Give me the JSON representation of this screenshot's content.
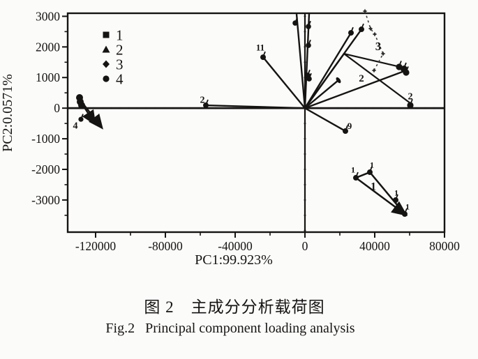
{
  "page": {
    "background": "#fbfbf9",
    "ink": "#161412",
    "dash_color": "#3e3e3e"
  },
  "caption": {
    "zh": "图 2　主成分分析载荷图",
    "en": "Fig.2   Principal component loading analysis"
  },
  "chart_data": {
    "type": "scatter",
    "title": "",
    "xlabel": "PC1:99.923%",
    "ylabel": "PC2:0.0571%",
    "xlim": [
      -136000,
      80000
    ],
    "ylim": [
      -4050,
      3100
    ],
    "x_ticks": [
      -120000,
      -80000,
      -40000,
      0,
      40000,
      80000
    ],
    "x_minor_ticks": [
      -100000,
      -60000,
      -20000,
      20000,
      60000
    ],
    "y_ticks": [
      3000,
      2000,
      1000,
      0,
      -1000,
      -2000,
      -3000
    ],
    "y_minor_step": 500,
    "axis_dot_step_x": 5000,
    "axis_dot_step_y": 500,
    "grid": false,
    "legend": {
      "position": "top-left-inside",
      "entries": [
        {
          "marker": "square",
          "label": "1"
        },
        {
          "marker": "triangle",
          "label": "2"
        },
        {
          "marker": "diamond",
          "label": "3"
        },
        {
          "marker": "circle",
          "label": "4"
        }
      ]
    },
    "origin": [
      0,
      0
    ],
    "origin_vectors": [
      {
        "x": -24000,
        "y": 1664,
        "tip_marker": "club"
      },
      {
        "x": -4800,
        "y": 3076,
        "tip_marker": "none",
        "points": [
          {
            "x": -5600,
            "y": 2780
          }
        ]
      },
      {
        "x": 2400,
        "y": 3089,
        "tip_marker": "none",
        "points": [
          {
            "x": 2000,
            "y": 2666
          },
          {
            "x": 2000,
            "y": 2051
          },
          {
            "x": 1600,
            "y": 1072
          },
          {
            "x": 2400,
            "y": 958
          }
        ]
      },
      {
        "x": 26400,
        "y": 2460,
        "tip_marker": "club"
      },
      {
        "x": 32400,
        "y": 2575,
        "tip_marker": "club"
      },
      {
        "x": 22400,
        "y": 1778,
        "tip_marker": "none"
      },
      {
        "x": 58000,
        "y": 1232,
        "tip_marker": "none"
      },
      {
        "x": 19200,
        "y": 913,
        "tip_marker": "comma"
      },
      {
        "x": 23200,
        "y": -749,
        "tip_marker": "club"
      },
      {
        "x": -56800,
        "y": 93,
        "tip_marker": "club"
      }
    ],
    "extra_segments": [
      {
        "x1": 22400,
        "y1": 1778,
        "x2": 56400,
        "y2": 1323
      },
      {
        "x1": 22400,
        "y1": 1778,
        "x2": 60400,
        "y2": 162
      }
    ],
    "dashed_cluster": {
      "label": "3",
      "nodes": [
        [
          34400,
          3167
        ],
        [
          37600,
          2598
        ],
        [
          40000,
          2416
        ],
        [
          44800,
          1778
        ],
        [
          39600,
          1232
        ]
      ]
    },
    "cluster2_points": [
      [
        54000,
        1346
      ],
      [
        56800,
        1278
      ],
      [
        58000,
        1164
      ],
      [
        60400,
        93
      ]
    ],
    "cluster1": {
      "label": "1",
      "points": [
        [
          29200,
          -2275
        ],
        [
          37200,
          -2093
        ],
        [
          52000,
          -3003
        ],
        [
          57200,
          -3459
        ]
      ],
      "segments": [
        [
          0,
          1
        ],
        [
          1,
          3
        ],
        [
          0,
          3
        ]
      ],
      "arrow_segment": 2
    },
    "cluster4": {
      "label": "4",
      "points": [
        [
          -129200,
          344
        ],
        [
          -128800,
          207
        ],
        [
          -128000,
          93
        ],
        [
          -128400,
          -364
        ]
      ],
      "arrows": [
        {
          "x1": -128000,
          "y1": 162,
          "x2": -120800,
          "y2": -476
        },
        {
          "x1": -126800,
          "y1": 116,
          "x2": -116800,
          "y2": -612
        }
      ]
    },
    "point_labels": [
      {
        "text": "11",
        "x": -25600,
        "y": 1980,
        "size": 13
      },
      {
        "text": "9",
        "x": 25600,
        "y": -580,
        "size": 13
      },
      {
        "text": "2",
        "x": -58800,
        "y": 280,
        "size": 14
      },
      {
        "text": "2",
        "x": 32400,
        "y": 990,
        "size": 15
      },
      {
        "text": "2",
        "x": 60400,
        "y": 400,
        "size": 14
      },
      {
        "text": "3",
        "x": 42000,
        "y": 2030,
        "size": 17
      },
      {
        "text": "4",
        "x": -131600,
        "y": -560,
        "size": 14
      },
      {
        "text": "1",
        "x": 27600,
        "y": -2010,
        "size": 12
      },
      {
        "text": "1",
        "x": 38400,
        "y": -1850,
        "size": 12
      },
      {
        "text": "1",
        "x": 52400,
        "y": -2760,
        "size": 12
      },
      {
        "text": "1",
        "x": 58800,
        "y": -3220,
        "size": 12
      },
      {
        "text": "1",
        "x": 39200,
        "y": -2545,
        "size": 16
      }
    ]
  }
}
